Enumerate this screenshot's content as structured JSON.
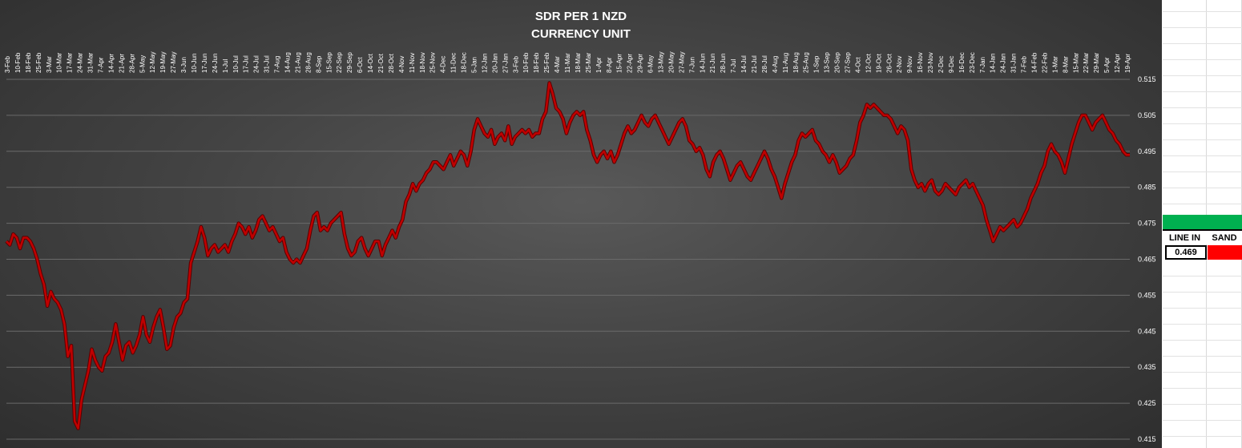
{
  "chart_data": {
    "type": "line",
    "title": "SDR PER 1 NZD",
    "subtitle": "CURRENCY UNIT",
    "xlabel": "",
    "ylabel": "",
    "ylim": [
      0.415,
      0.515
    ],
    "y_ticks": [
      "0.515",
      "0.505",
      "0.495",
      "0.485",
      "0.475",
      "0.465",
      "0.455",
      "0.445",
      "0.435",
      "0.425",
      "0.415"
    ],
    "x_ticks": [
      "3-Feb",
      "10-Feb",
      "18-Feb",
      "25-Feb",
      "3-Mar",
      "10-Mar",
      "17-Mar",
      "24-Mar",
      "31-Mar",
      "7-Apr",
      "14-Apr",
      "21-Apr",
      "28-Apr",
      "5-May",
      "12-May",
      "19-May",
      "27-May",
      "3-Jun",
      "10-Jun",
      "17-Jun",
      "24-Jun",
      "1-Jul",
      "10-Jul",
      "17-Jul",
      "24-Jul",
      "31-Jul",
      "7-Aug",
      "14-Aug",
      "21-Aug",
      "28-Aug",
      "8-Sep",
      "15-Sep",
      "22-Sep",
      "29-Sep",
      "6-Oct",
      "14-Oct",
      "21-Oct",
      "28-Oct",
      "4-Nov",
      "11-Nov",
      "18-Nov",
      "25-Nov",
      "4-Dec",
      "11-Dec",
      "18-Dec",
      "5-Jan",
      "12-Jan",
      "20-Jan",
      "27-Jan",
      "3-Feb",
      "10-Feb",
      "18-Feb",
      "25-Feb",
      "4-Mar",
      "11-Mar",
      "18-Mar",
      "25-Mar",
      "1-Apr",
      "8-Apr",
      "15-Apr",
      "22-Apr",
      "29-Apr",
      "6-May",
      "13-May",
      "20-May",
      "27-May",
      "7-Jun",
      "14-Jun",
      "21-Jun",
      "28-Jun",
      "7-Jul",
      "14-Jul",
      "21-Jul",
      "28-Jul",
      "4-Aug",
      "11-Aug",
      "18-Aug",
      "25-Aug",
      "1-Sep",
      "13-Sep",
      "20-Sep",
      "27-Sep",
      "4-Oct",
      "12-Oct",
      "19-Oct",
      "26-Oct",
      "2-Nov",
      "9-Nov",
      "16-Nov",
      "23-Nov",
      "2-Dec",
      "9-Dec",
      "16-Dec",
      "23-Dec",
      "7-Jan",
      "14-Jan",
      "24-Jan",
      "31-Jan",
      "7-Feb",
      "14-Feb",
      "22-Feb",
      "1-Mar",
      "8-Mar",
      "15-Mar",
      "22-Mar",
      "29-Mar",
      "5-Apr",
      "12-Apr",
      "19-Apr"
    ],
    "series": [
      {
        "color": "#c00000",
        "values": [
          0.47,
          0.469,
          0.472,
          0.471,
          0.468,
          0.471,
          0.471,
          0.47,
          0.468,
          0.465,
          0.461,
          0.458,
          0.452,
          0.456,
          0.454,
          0.453,
          0.451,
          0.447,
          0.438,
          0.441,
          0.42,
          0.418,
          0.426,
          0.43,
          0.434,
          0.44,
          0.437,
          0.435,
          0.434,
          0.438,
          0.439,
          0.442,
          0.447,
          0.442,
          0.437,
          0.441,
          0.442,
          0.439,
          0.441,
          0.444,
          0.449,
          0.444,
          0.442,
          0.446,
          0.449,
          0.451,
          0.446,
          0.44,
          0.441,
          0.446,
          0.449,
          0.45,
          0.453,
          0.454,
          0.464,
          0.467,
          0.47,
          0.474,
          0.471,
          0.466,
          0.468,
          0.469,
          0.467,
          0.468,
          0.469,
          0.467,
          0.47,
          0.472,
          0.475,
          0.474,
          0.472,
          0.474,
          0.471,
          0.473,
          0.476,
          0.477,
          0.475,
          0.473,
          0.474,
          0.472,
          0.47,
          0.471,
          0.467,
          0.465,
          0.464,
          0.465,
          0.464,
          0.466,
          0.468,
          0.473,
          0.477,
          0.478,
          0.473,
          0.474,
          0.473,
          0.475,
          0.476,
          0.477,
          0.478,
          0.472,
          0.468,
          0.466,
          0.467,
          0.47,
          0.471,
          0.468,
          0.466,
          0.468,
          0.47,
          0.47,
          0.466,
          0.469,
          0.471,
          0.473,
          0.471,
          0.474,
          0.476,
          0.481,
          0.483,
          0.486,
          0.484,
          0.486,
          0.487,
          0.489,
          0.49,
          0.492,
          0.492,
          0.491,
          0.49,
          0.492,
          0.494,
          0.491,
          0.493,
          0.495,
          0.494,
          0.491,
          0.495,
          0.501,
          0.504,
          0.502,
          0.5,
          0.499,
          0.501,
          0.497,
          0.499,
          0.5,
          0.498,
          0.502,
          0.497,
          0.499,
          0.5,
          0.501,
          0.5,
          0.501,
          0.499,
          0.5,
          0.5,
          0.504,
          0.506,
          0.514,
          0.511,
          0.507,
          0.506,
          0.504,
          0.5,
          0.503,
          0.505,
          0.506,
          0.505,
          0.506,
          0.501,
          0.498,
          0.494,
          0.492,
          0.494,
          0.495,
          0.493,
          0.495,
          0.492,
          0.494,
          0.497,
          0.5,
          0.502,
          0.5,
          0.501,
          0.503,
          0.505,
          0.503,
          0.502,
          0.504,
          0.505,
          0.503,
          0.501,
          0.499,
          0.497,
          0.499,
          0.501,
          0.503,
          0.504,
          0.502,
          0.498,
          0.497,
          0.495,
          0.496,
          0.494,
          0.49,
          0.488,
          0.492,
          0.494,
          0.495,
          0.493,
          0.49,
          0.487,
          0.489,
          0.491,
          0.492,
          0.49,
          0.488,
          0.487,
          0.489,
          0.491,
          0.493,
          0.495,
          0.493,
          0.49,
          0.488,
          0.485,
          0.482,
          0.486,
          0.489,
          0.492,
          0.494,
          0.498,
          0.5,
          0.499,
          0.5,
          0.501,
          0.498,
          0.497,
          0.495,
          0.494,
          0.492,
          0.494,
          0.492,
          0.489,
          0.49,
          0.491,
          0.493,
          0.494,
          0.498,
          0.503,
          0.505,
          0.508,
          0.507,
          0.508,
          0.507,
          0.506,
          0.505,
          0.505,
          0.504,
          0.502,
          0.5,
          0.502,
          0.501,
          0.498,
          0.49,
          0.487,
          0.485,
          0.486,
          0.484,
          0.486,
          0.487,
          0.484,
          0.483,
          0.484,
          0.486,
          0.485,
          0.484,
          0.483,
          0.485,
          0.486,
          0.487,
          0.485,
          0.486,
          0.484,
          0.482,
          0.48,
          0.476,
          0.473,
          0.47,
          0.472,
          0.474,
          0.473,
          0.474,
          0.475,
          0.476,
          0.474,
          0.475,
          0.477,
          0.479,
          0.482,
          0.484,
          0.486,
          0.489,
          0.491,
          0.495,
          0.497,
          0.495,
          0.494,
          0.492,
          0.489,
          0.493,
          0.497,
          0.5,
          0.503,
          0.505,
          0.505,
          0.503,
          0.501,
          0.503,
          0.504,
          0.505,
          0.503,
          0.501,
          0.5,
          0.498,
          0.497,
          0.495,
          0.494,
          0.494
        ]
      }
    ],
    "grid": true,
    "legend": "none"
  },
  "side_panel": {
    "header_left": "LINE IN",
    "header_right": "SAND",
    "value": "0.469",
    "green_color": "#00b050",
    "red_color": "#ff0000"
  }
}
